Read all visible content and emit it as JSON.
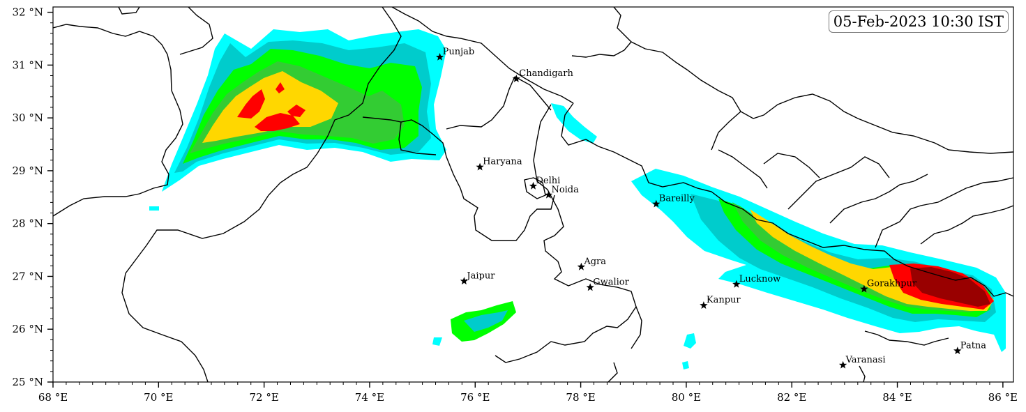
{
  "timestamp": "05-Feb-2023 10:30 IST",
  "map": {
    "lon_range": [
      68,
      86.2
    ],
    "lat_range": [
      25,
      32.1
    ],
    "x_ticks": [
      {
        "lon": 68,
        "label": "68 °E"
      },
      {
        "lon": 70,
        "label": "70 °E"
      },
      {
        "lon": 72,
        "label": "72 °E"
      },
      {
        "lon": 74,
        "label": "74 °E"
      },
      {
        "lon": 76,
        "label": "76 °E"
      },
      {
        "lon": 78,
        "label": "78 °E"
      },
      {
        "lon": 80,
        "label": "80 °E"
      },
      {
        "lon": 82,
        "label": "82 °E"
      },
      {
        "lon": 84,
        "label": "84 °E"
      },
      {
        "lon": 86,
        "label": "86 °E"
      }
    ],
    "y_ticks": [
      {
        "lat": 25,
        "label": "25 °N"
      },
      {
        "lat": 26,
        "label": "26 °N"
      },
      {
        "lat": 27,
        "label": "27 °N"
      },
      {
        "lat": 28,
        "label": "28 °N"
      },
      {
        "lat": 29,
        "label": "29 °N"
      },
      {
        "lat": 30,
        "label": "30 °N"
      },
      {
        "lat": 31,
        "label": "31 °N"
      },
      {
        "lat": 32,
        "label": "32 °N"
      }
    ],
    "cities": [
      {
        "name": "Punjab",
        "lon": 75.33,
        "lat": 31.15
      },
      {
        "name": "Chandigarh",
        "lon": 76.78,
        "lat": 30.74
      },
      {
        "name": "Haryana",
        "lon": 76.09,
        "lat": 29.07
      },
      {
        "name": "Delhi",
        "lon": 77.1,
        "lat": 28.71
      },
      {
        "name": "Noida",
        "lon": 77.39,
        "lat": 28.54
      },
      {
        "name": "Bareilly",
        "lon": 79.43,
        "lat": 28.37
      },
      {
        "name": "Agra",
        "lon": 78.01,
        "lat": 27.18
      },
      {
        "name": "Jaipur",
        "lon": 75.79,
        "lat": 26.91
      },
      {
        "name": "Gwalior",
        "lon": 78.18,
        "lat": 26.79
      },
      {
        "name": "Lucknow",
        "lon": 80.95,
        "lat": 26.85
      },
      {
        "name": "Kanpur",
        "lon": 80.33,
        "lat": 26.45
      },
      {
        "name": "Gorakhpur",
        "lon": 83.37,
        "lat": 26.76
      },
      {
        "name": "Varanasi",
        "lon": 82.97,
        "lat": 25.32
      },
      {
        "name": "Patna",
        "lon": 85.14,
        "lat": 25.59
      }
    ],
    "colors": {
      "level1": "#00ffff",
      "level2": "#00cccc",
      "level3": "#00ff00",
      "level4": "#33cc33",
      "level5": "#ffd700",
      "level6": "#ff0000",
      "level7": "#990000",
      "border": "#000000",
      "city_marker": "#000000"
    }
  }
}
